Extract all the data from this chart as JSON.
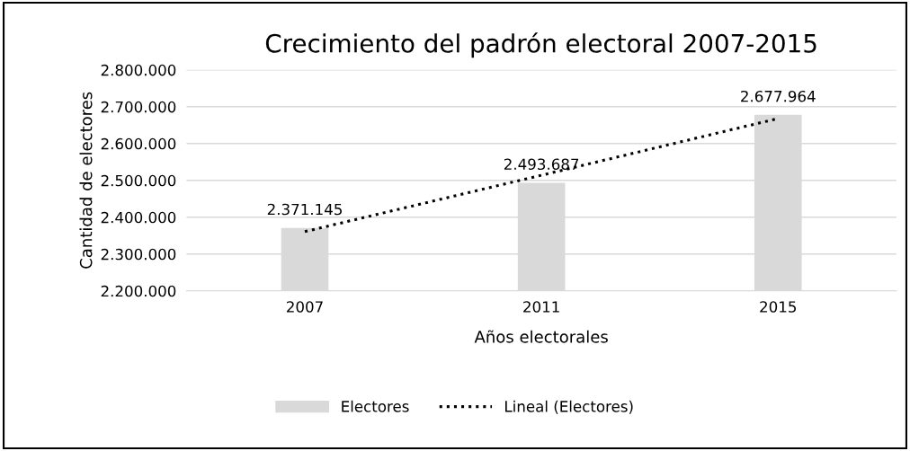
{
  "chart_data": {
    "type": "bar",
    "title": "Crecimiento del padrón electoral 2007-2015",
    "xlabel": "Años electorales",
    "ylabel": "Cantidad de electores",
    "categories": [
      "2007",
      "2011",
      "2015"
    ],
    "series": [
      {
        "name": "Electores",
        "color": "#d9d9d9",
        "values": [
          2371145,
          2493687,
          2677964
        ],
        "value_labels": [
          "2.371.145",
          "2.493.687",
          "2.677.964"
        ]
      },
      {
        "name": "Lineal (Electores)",
        "type": "line",
        "color": "#000000",
        "values": [
          2361000,
          2514000,
          2668000
        ],
        "line_style": "dotted"
      }
    ],
    "ylim": [
      2200000,
      2800000
    ],
    "yticks": [
      {
        "value": 2200000,
        "label": "2.200.000"
      },
      {
        "value": 2300000,
        "label": "2.300.000"
      },
      {
        "value": 2400000,
        "label": "2.400.000"
      },
      {
        "value": 2500000,
        "label": "2.500.000"
      },
      {
        "value": 2600000,
        "label": "2.600.000"
      },
      {
        "value": 2700000,
        "label": "2.700.000"
      },
      {
        "value": 2800000,
        "label": "2.800.000"
      }
    ],
    "grid": "y",
    "legend": "bottom"
  }
}
